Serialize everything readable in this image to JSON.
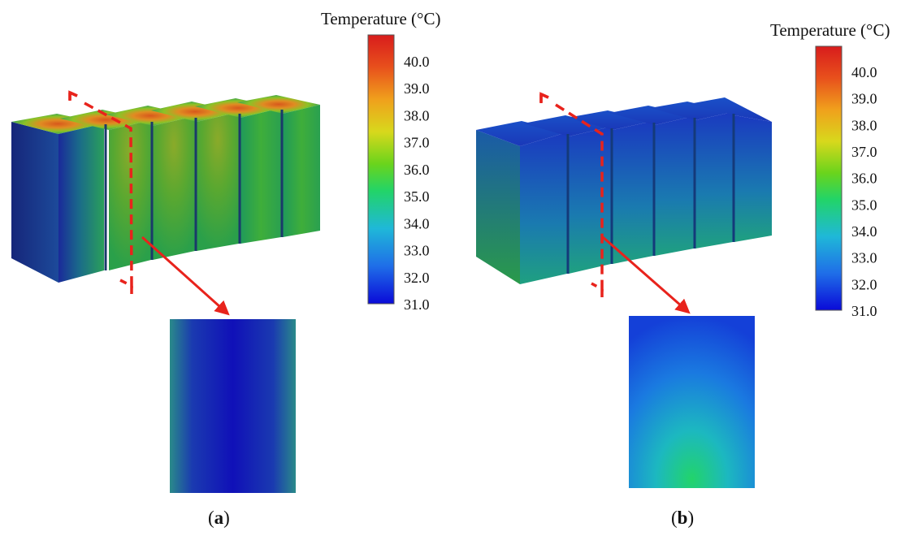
{
  "panels": [
    {
      "id": "a",
      "label_open": "(",
      "label_letter": "a",
      "label_close": ")",
      "colorbar": {
        "title": "Temperature (°C)",
        "min": 31.0,
        "max": 41.0,
        "ticks": [
          "40.0",
          "39.0",
          "38.0",
          "37.0",
          "36.0",
          "35.0",
          "34.0",
          "33.0",
          "32.0",
          "31.0"
        ]
      }
    },
    {
      "id": "b",
      "label_open": "(",
      "label_letter": "b",
      "label_close": ")",
      "colorbar": {
        "title": "Temperature (°C)",
        "min": 31.0,
        "max": 41.0,
        "ticks": [
          "40.0",
          "39.0",
          "38.0",
          "37.0",
          "36.0",
          "35.0",
          "34.0",
          "33.0",
          "32.0",
          "31.0"
        ]
      }
    }
  ],
  "colors": {
    "section_marker": "#e8231c",
    "colorbar_stops": [
      "#0a0ad8",
      "#1f6ee8",
      "#1fb8d8",
      "#22d468",
      "#6ad41c",
      "#d8d81c",
      "#f0a01c",
      "#e8501c",
      "#d81c1c"
    ]
  }
}
